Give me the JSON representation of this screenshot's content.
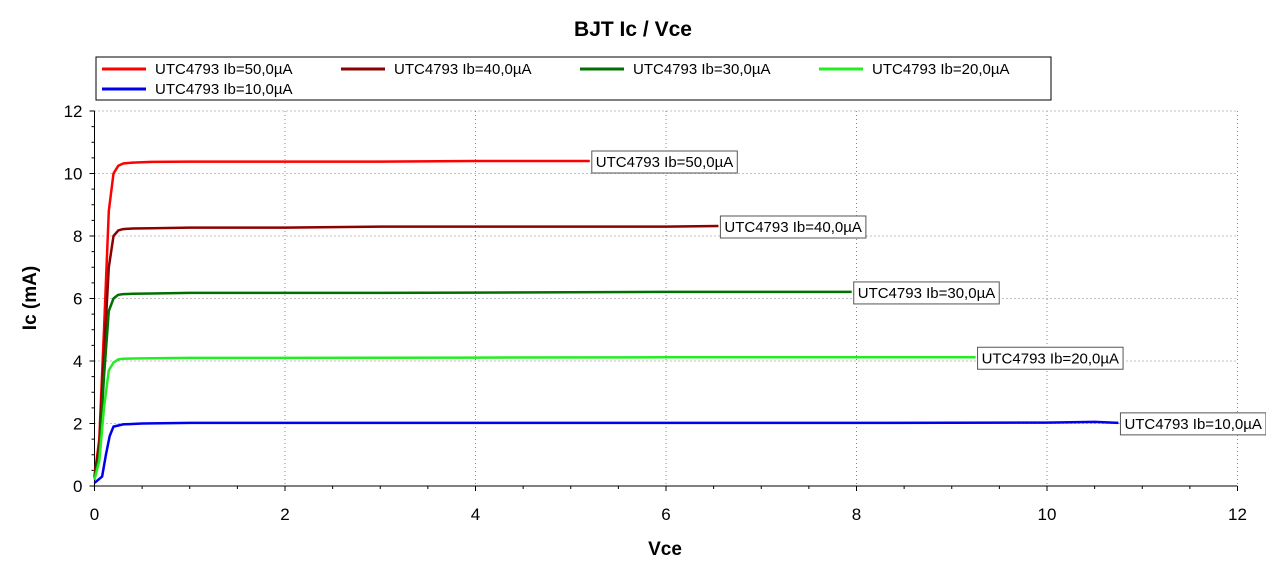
{
  "chart_data": {
    "type": "line",
    "title": "BJT Ic / Vce",
    "xlabel": "Vce",
    "ylabel": "Ic (mA)",
    "xlim": [
      0,
      12
    ],
    "ylim": [
      0,
      12
    ],
    "xticks": [
      0,
      2,
      4,
      6,
      8,
      10,
      12
    ],
    "yticks": [
      0,
      2,
      4,
      6,
      8,
      10,
      12
    ],
    "grid": true,
    "legend_position": "top",
    "series": [
      {
        "name": "UTC4793 Ib=50,0µA",
        "color": "#ff0000",
        "x": [
          0,
          0.05,
          0.1,
          0.15,
          0.2,
          0.25,
          0.3,
          0.4,
          0.6,
          1.0,
          2.0,
          3.0,
          4.0,
          5.2
        ],
        "y": [
          0.3,
          1.5,
          5.0,
          8.8,
          10.0,
          10.25,
          10.32,
          10.35,
          10.37,
          10.38,
          10.38,
          10.38,
          10.4,
          10.4
        ]
      },
      {
        "name": "UTC4793 Ib=40,0µA",
        "color": "#8b0000",
        "x": [
          0,
          0.05,
          0.1,
          0.15,
          0.2,
          0.25,
          0.3,
          0.4,
          0.6,
          1.0,
          2.0,
          3.0,
          4.0,
          5.0,
          6.0,
          6.55
        ],
        "y": [
          0.3,
          1.3,
          4.2,
          7.0,
          8.0,
          8.18,
          8.22,
          8.24,
          8.25,
          8.27,
          8.27,
          8.3,
          8.3,
          8.3,
          8.3,
          8.32
        ]
      },
      {
        "name": "UTC4793 Ib=30,0µA",
        "color": "#007000",
        "x": [
          0,
          0.05,
          0.1,
          0.15,
          0.2,
          0.25,
          0.3,
          0.4,
          0.6,
          1.0,
          2.0,
          3.0,
          4.0,
          5.0,
          6.0,
          7.0,
          7.95
        ],
        "y": [
          0.25,
          1.0,
          3.5,
          5.6,
          6.0,
          6.12,
          6.14,
          6.15,
          6.16,
          6.18,
          6.18,
          6.18,
          6.19,
          6.2,
          6.21,
          6.21,
          6.21
        ]
      },
      {
        "name": "UTC4793 Ib=20,0µA",
        "color": "#22ee22",
        "x": [
          0,
          0.05,
          0.1,
          0.15,
          0.2,
          0.25,
          0.3,
          0.4,
          0.6,
          1.0,
          2.0,
          4.0,
          6.0,
          8.0,
          9.25
        ],
        "y": [
          0.2,
          0.8,
          2.5,
          3.7,
          3.95,
          4.05,
          4.07,
          4.08,
          4.09,
          4.1,
          4.1,
          4.11,
          4.12,
          4.12,
          4.12
        ]
      },
      {
        "name": "UTC4793 Ib=10,0µA",
        "color": "#0000ee",
        "x": [
          0,
          0.08,
          0.12,
          0.16,
          0.2,
          0.3,
          0.5,
          1.0,
          2.0,
          4.0,
          6.0,
          8.0,
          10.0,
          10.5,
          10.75
        ],
        "y": [
          0.1,
          0.3,
          1.0,
          1.6,
          1.9,
          1.97,
          2.0,
          2.02,
          2.02,
          2.02,
          2.02,
          2.02,
          2.03,
          2.05,
          2.02
        ]
      }
    ]
  }
}
